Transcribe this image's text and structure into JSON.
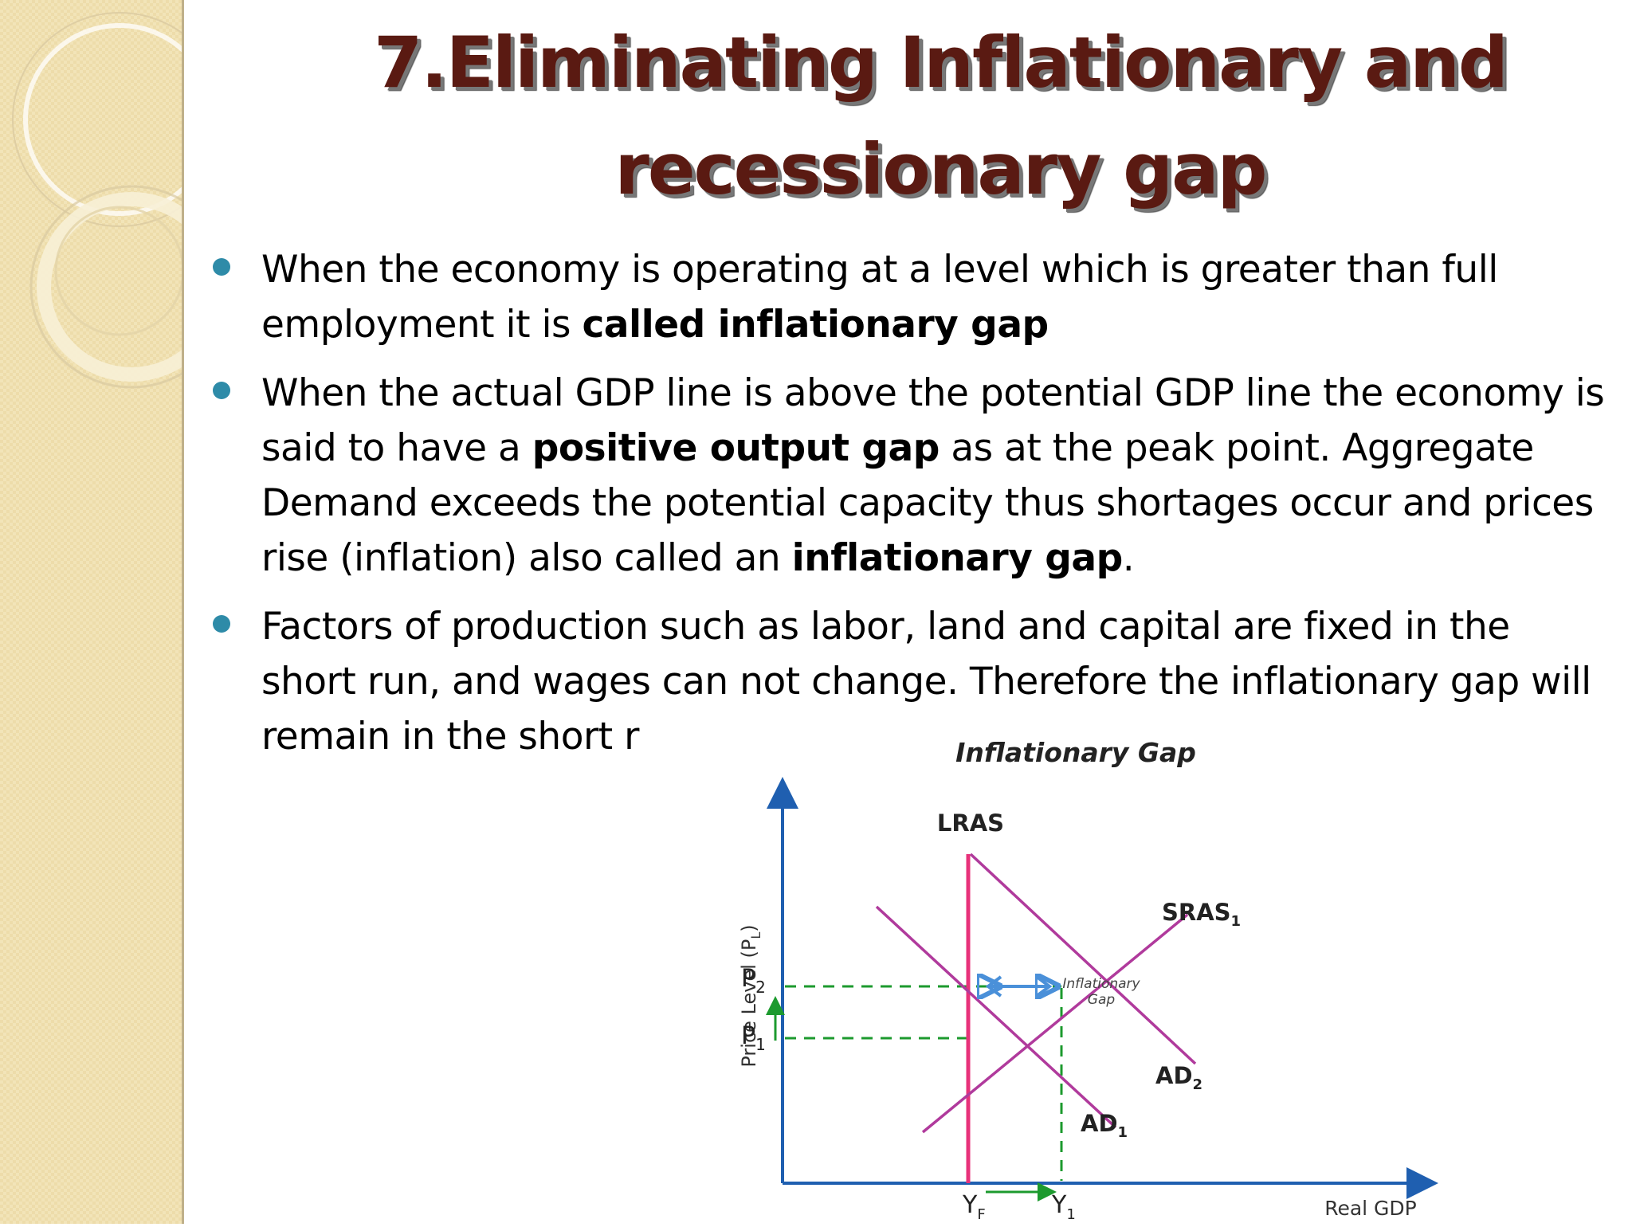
{
  "slide": {
    "title_line1": "7.Eliminating Inflationary and",
    "title_line2": "recessionary gap",
    "bullets": [
      {
        "pre": "When the economy is operating at a level which is greater than full employment it is ",
        "bold": "called inflationary gap",
        "post": ""
      },
      {
        "pre": "When the actual GDP line is above the potential GDP line the economy is said to have a ",
        "bold": "positive output gap",
        "mid": " as at the peak point. Aggregate Demand exceeds the potential capacity thus shortages occur and prices rise (inflation) also called an ",
        "bold2": "inflationary gap",
        "post": "."
      },
      {
        "pre": "Factors of production such as labor, land and capital are fixed in the short run, and wages can not change. Therefore the inflationary gap will remain in the short r",
        "bold": "",
        "post": ""
      }
    ]
  },
  "chart_data": {
    "type": "diagram",
    "title": "Inflationary Gap",
    "xlabel": "Real GDP",
    "ylabel": "Price Level (P",
    "ylabel_sub": "L",
    "ylabel_close": ")",
    "curves": {
      "lras": "LRAS",
      "sras": "SRAS",
      "sras_sub": "1",
      "ad1": "AD",
      "ad1_sub": "1",
      "ad2": "AD",
      "ad2_sub": "2"
    },
    "price_labels": {
      "p2": "P",
      "p2_sub": "2",
      "p1": "P",
      "p1_sub": "1"
    },
    "output_labels": {
      "yf": "Y",
      "yf_sub": "F",
      "y1": "Y",
      "y1_sub": "1"
    },
    "gap_label_line1": "Inflationary",
    "gap_label_line2": "Gap",
    "colors": {
      "lras": "#e8327a",
      "curves": "#b03a9c",
      "axes": "#1f5fb0",
      "dashed": "#1c9a2e",
      "gap_arrow": "#4a90d9",
      "green_arrow": "#1c9a2e"
    }
  }
}
